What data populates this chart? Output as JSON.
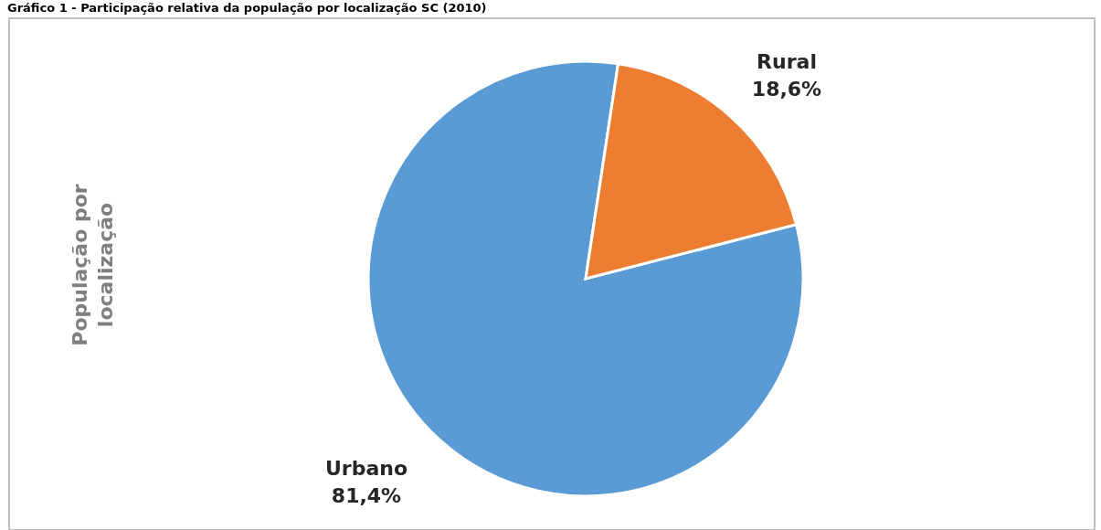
{
  "chart_data": {
    "type": "pie",
    "title": "Gráfico 1 - Participação relativa da população por localização SC (2010)",
    "ylabel": "População por localização",
    "categories": [
      "Urbano",
      "Rural"
    ],
    "values": [
      81.4,
      18.6
    ],
    "colors": [
      "#5b9bd5",
      "#ed7d31"
    ],
    "value_labels": [
      "81,4%",
      "18,6%"
    ]
  }
}
